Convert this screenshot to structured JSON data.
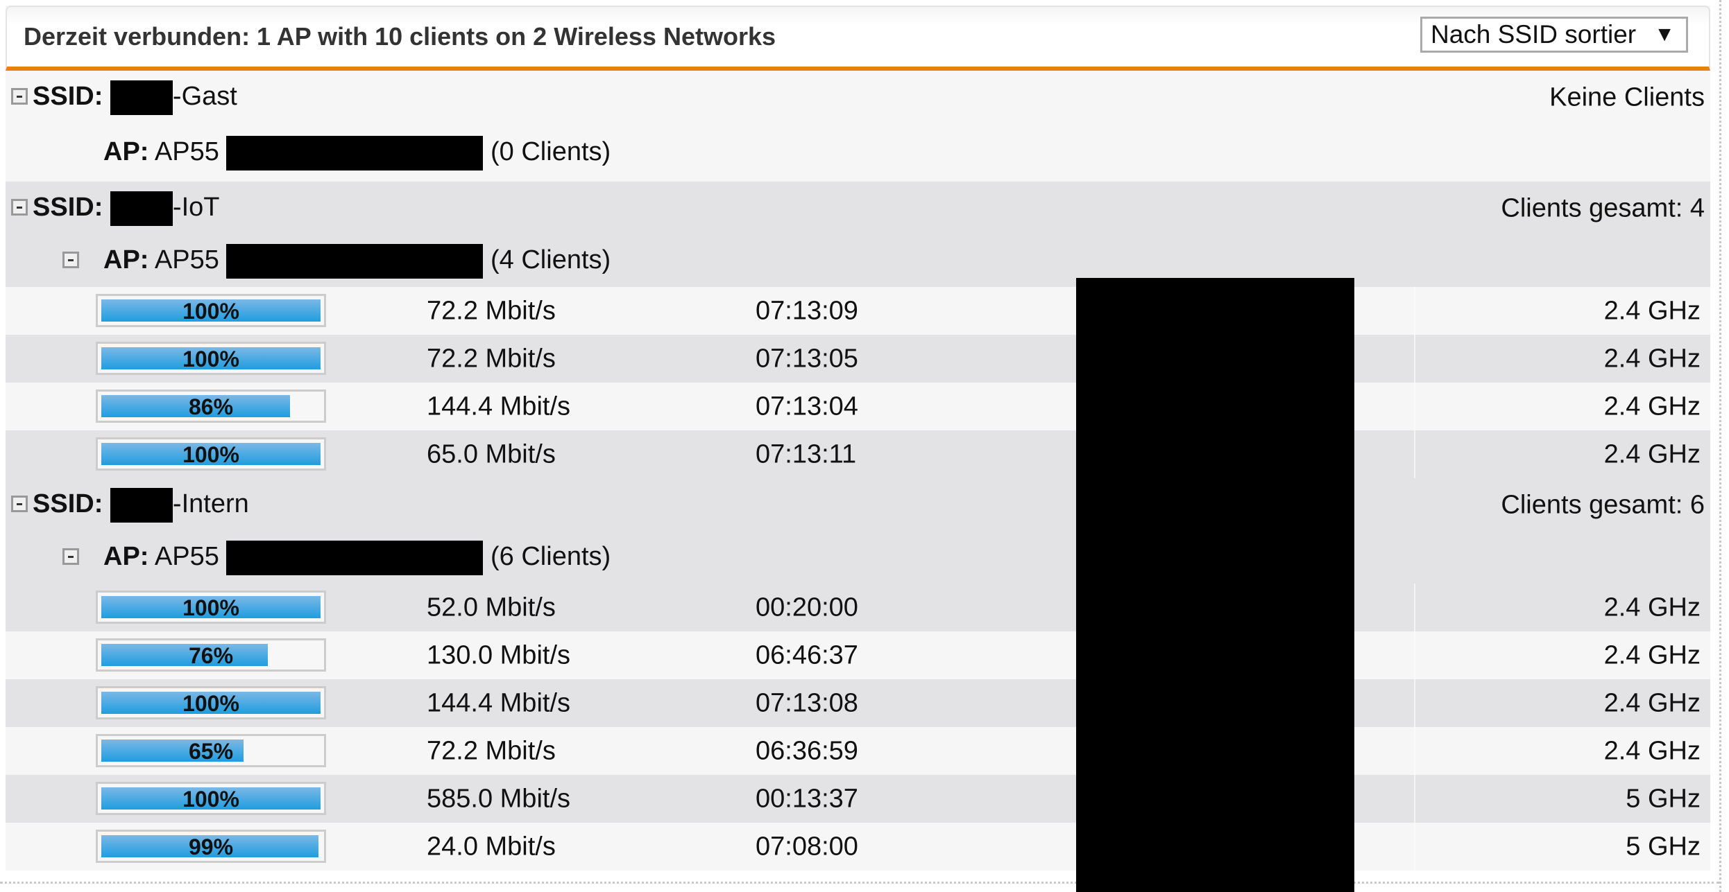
{
  "header": {
    "title": "Derzeit verbunden: 1 AP with 10 clients on 2 Wireless Networks",
    "sort_select": {
      "value": "Nach SSID sortier",
      "arrow": "▼"
    }
  },
  "colors": {
    "accent": "#e8820c",
    "bar_fill": "#1f9ddf",
    "group_bg": "#e3e3e5"
  },
  "ssid_label": "SSID:",
  "ap_label": "AP:",
  "groups": [
    {
      "ssid_suffix": "-Gast",
      "summary": "Keine Clients",
      "ap": {
        "name": "AP55",
        "clients_text": "(0 Clients)",
        "collapsible": false
      },
      "clients": []
    },
    {
      "ssid_suffix": "-IoT",
      "summary": "Clients gesamt: 4",
      "ap": {
        "name": "AP55",
        "clients_text": "(4 Clients)",
        "collapsible": true
      },
      "clients": [
        {
          "signal": 100,
          "signal_text": "100%",
          "rate": "72.2 Mbit/s",
          "time": "07:13:09",
          "band": "2.4 GHz"
        },
        {
          "signal": 100,
          "signal_text": "100%",
          "rate": "72.2 Mbit/s",
          "time": "07:13:05",
          "band": "2.4 GHz"
        },
        {
          "signal": 86,
          "signal_text": "86%",
          "rate": "144.4 Mbit/s",
          "time": "07:13:04",
          "band": "2.4 GHz"
        },
        {
          "signal": 100,
          "signal_text": "100%",
          "rate": "65.0 Mbit/s",
          "time": "07:13:11",
          "band": "2.4 GHz"
        }
      ]
    },
    {
      "ssid_suffix": "-Intern",
      "summary": "Clients gesamt: 6",
      "ap": {
        "name": "AP55",
        "clients_text": "(6 Clients)",
        "collapsible": true
      },
      "clients": [
        {
          "signal": 100,
          "signal_text": "100%",
          "rate": "52.0 Mbit/s",
          "time": "00:20:00",
          "band": "2.4 GHz"
        },
        {
          "signal": 76,
          "signal_text": "76%",
          "rate": "130.0 Mbit/s",
          "time": "06:46:37",
          "band": "2.4 GHz"
        },
        {
          "signal": 100,
          "signal_text": "100%",
          "rate": "144.4 Mbit/s",
          "time": "07:13:08",
          "band": "2.4 GHz"
        },
        {
          "signal": 65,
          "signal_text": "65%",
          "rate": "72.2 Mbit/s",
          "time": "06:36:59",
          "band": "2.4 GHz"
        },
        {
          "signal": 100,
          "signal_text": "100%",
          "rate": "585.0 Mbit/s",
          "time": "00:13:37",
          "band": "5 GHz"
        },
        {
          "signal": 99,
          "signal_text": "99%",
          "rate": "24.0 Mbit/s",
          "time": "07:08:00",
          "band": "5 GHz"
        }
      ]
    }
  ]
}
